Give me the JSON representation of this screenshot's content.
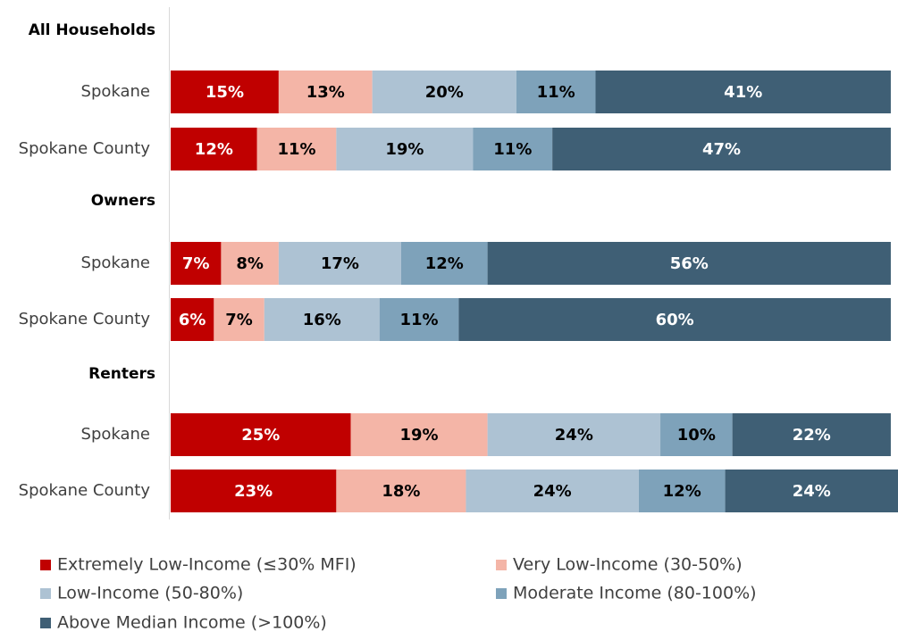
{
  "chart_data": {
    "type": "stacked_barh",
    "groups": [
      "All Households",
      "Owners",
      "Renters"
    ],
    "categories": [
      "Spokane",
      "Spokane County",
      "Spokane",
      "Spokane County",
      "Spokane",
      "Spokane County"
    ],
    "xlim": [
      0,
      101
    ],
    "series": [
      {
        "name": "Extremely Low-Income (≤30% MFI)",
        "color": "#c00000",
        "values": [
          15,
          12,
          7,
          6,
          25,
          23
        ],
        "value_labels": [
          "15%",
          "12%",
          "7%",
          "6%",
          "25%",
          "23%"
        ]
      },
      {
        "name": "Very Low-Income (30-50%)",
        "color": "#f4b5a7",
        "values": [
          13,
          11,
          8,
          7,
          19,
          18
        ],
        "value_labels": [
          "13%",
          "11%",
          "8%",
          "7%",
          "19%",
          "18%"
        ]
      },
      {
        "name": "Low-Income (50-80%)",
        "color": "#adc2d3",
        "values": [
          20,
          19,
          17,
          16,
          24,
          24
        ],
        "value_labels": [
          "20%",
          "19%",
          "17%",
          "16%",
          "24%",
          "24%"
        ]
      },
      {
        "name": "Moderate Income (80-100%)",
        "color": "#7ea2ba",
        "values": [
          11,
          11,
          12,
          11,
          10,
          12
        ],
        "value_labels": [
          "11%",
          "11%",
          "12%",
          "11%",
          "10%",
          "12%"
        ]
      },
      {
        "name": "Above Median Income (>100%)",
        "color": "#3f5f75",
        "values": [
          41,
          47,
          56,
          60,
          22,
          24
        ],
        "value_labels": [
          "41%",
          "47%",
          "56%",
          "60%",
          "22%",
          "24%"
        ]
      }
    ]
  }
}
